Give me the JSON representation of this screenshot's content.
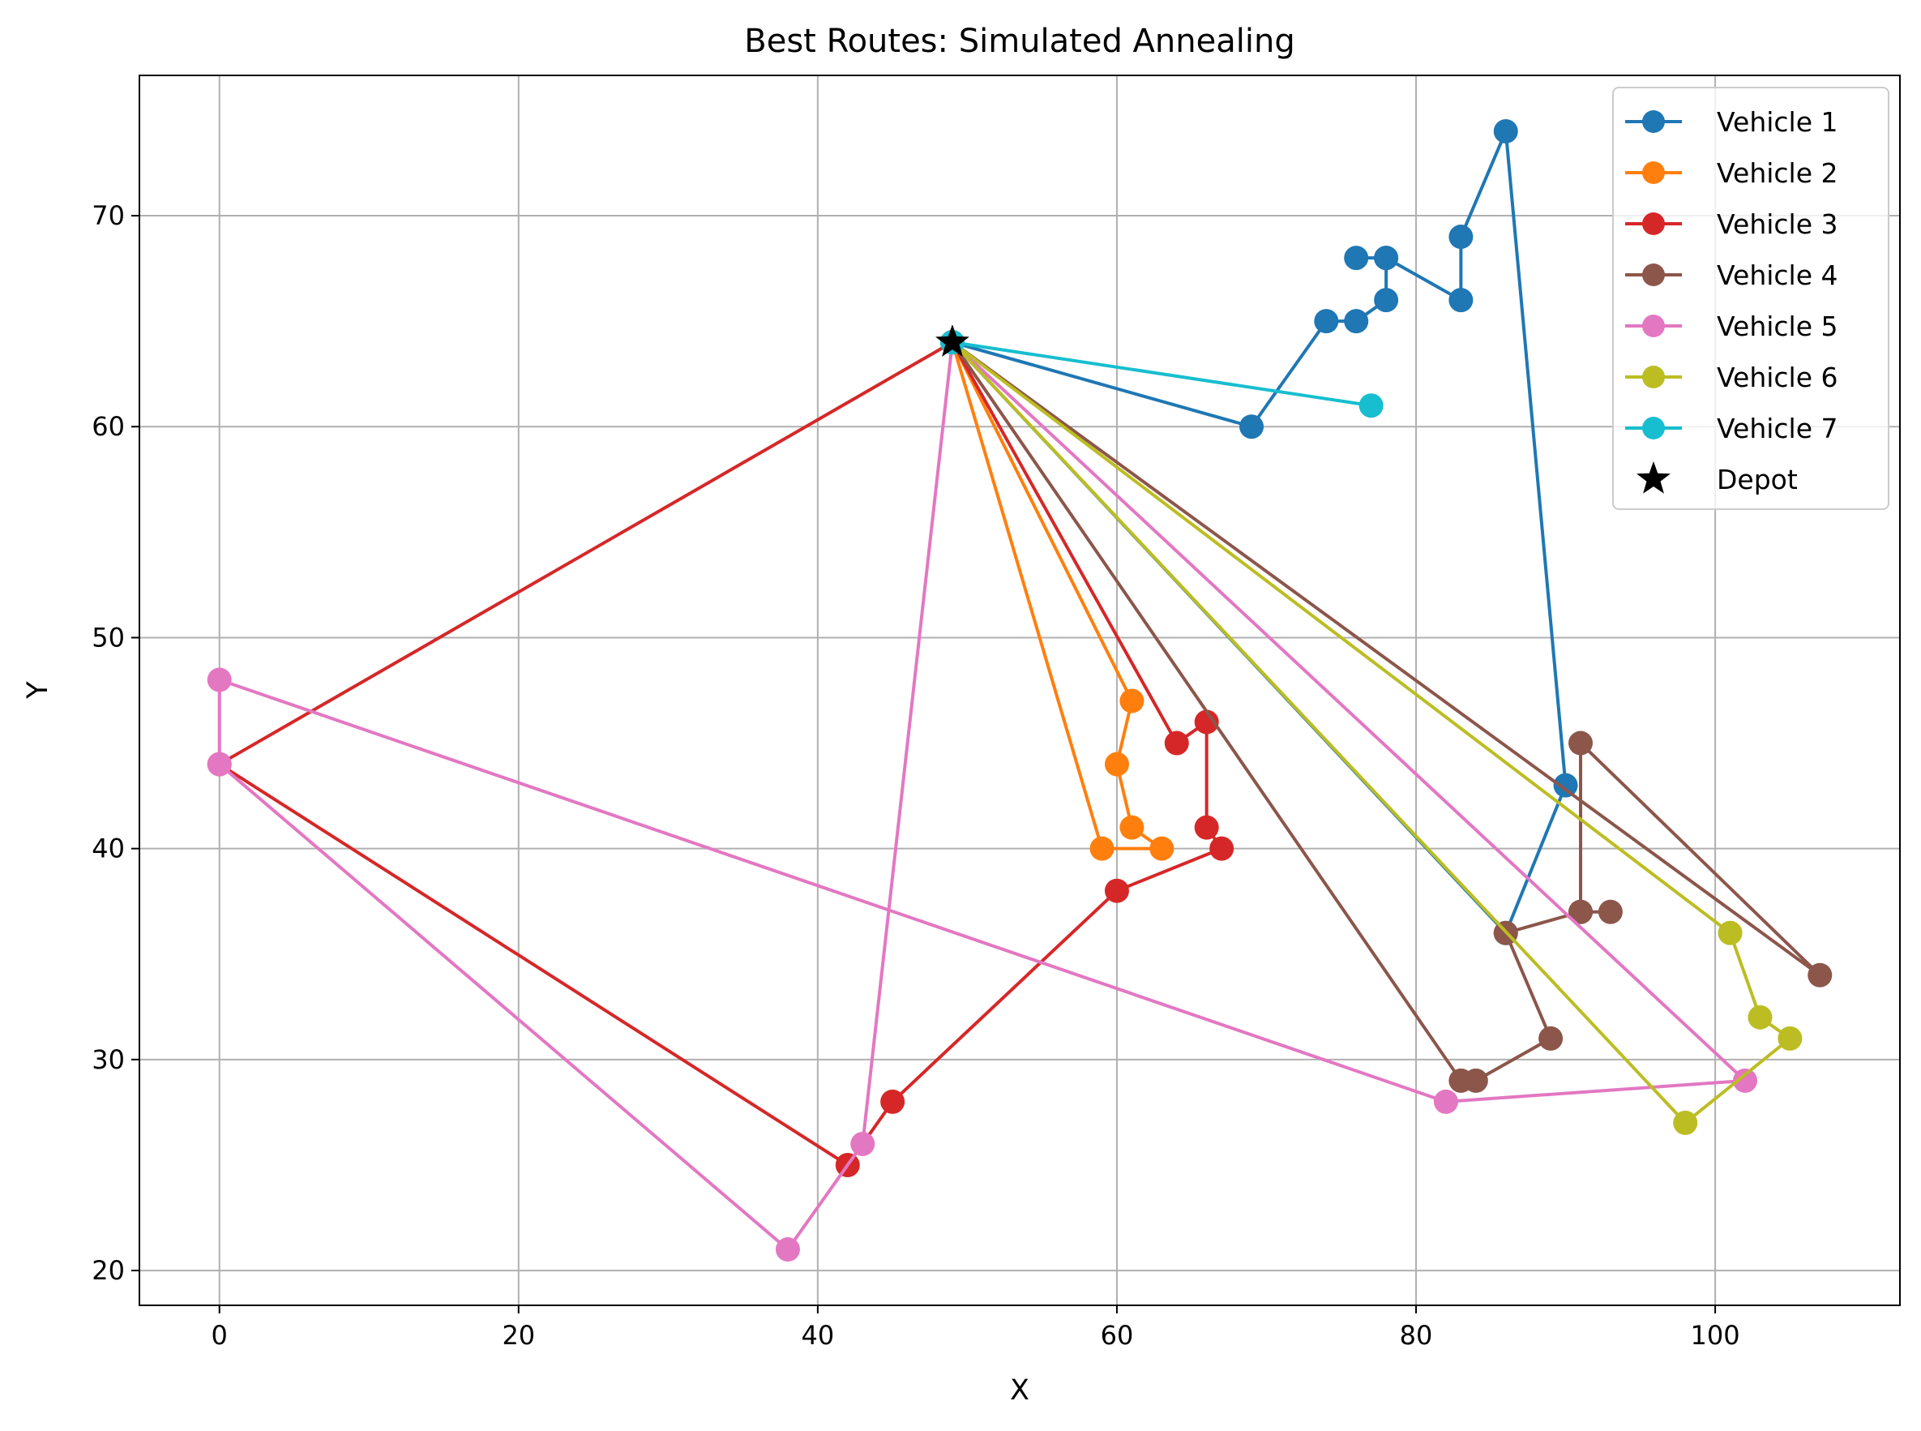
{
  "chart_data": {
    "type": "line",
    "title": "Best Routes: Simulated Annealing",
    "xlabel": "X",
    "ylabel": "Y",
    "xlim": [
      -5.35,
      112.35
    ],
    "ylim": [
      18.35,
      76.65
    ],
    "x_ticks": [
      0,
      20,
      40,
      60,
      80,
      100
    ],
    "y_ticks": [
      20,
      30,
      40,
      50,
      60,
      70
    ],
    "grid": true,
    "legend_position": "top-right",
    "depot": {
      "name": "Depot",
      "x": 49,
      "y": 64,
      "marker": "star",
      "color": "#000000"
    },
    "series": [
      {
        "name": "Vehicle 1",
        "color": "#1f77b4",
        "points": [
          [
            49,
            64
          ],
          [
            69,
            60
          ],
          [
            74,
            65
          ],
          [
            76,
            65
          ],
          [
            78,
            66
          ],
          [
            78,
            68
          ],
          [
            76,
            68
          ],
          [
            78,
            68
          ],
          [
            83,
            66
          ],
          [
            83,
            69
          ],
          [
            86,
            74
          ],
          [
            90,
            43
          ],
          [
            86,
            36
          ],
          [
            49,
            64
          ]
        ]
      },
      {
        "name": "Vehicle 2",
        "color": "#ff7f0e",
        "points": [
          [
            49,
            64
          ],
          [
            61,
            47
          ],
          [
            60,
            44
          ],
          [
            61,
            41
          ],
          [
            63,
            40
          ],
          [
            59,
            40
          ],
          [
            49,
            64
          ]
        ]
      },
      {
        "name": "Vehicle 3",
        "color": "#d62728",
        "points": [
          [
            49,
            64
          ],
          [
            64,
            45
          ],
          [
            66,
            46
          ],
          [
            66,
            41
          ],
          [
            67,
            40
          ],
          [
            60,
            38
          ],
          [
            45,
            28
          ],
          [
            42,
            25
          ],
          [
            0,
            44
          ],
          [
            49,
            64
          ]
        ]
      },
      {
        "name": "Vehicle 4",
        "color": "#8c564b",
        "points": [
          [
            49,
            64
          ],
          [
            83,
            29
          ],
          [
            84,
            29
          ],
          [
            89,
            31
          ],
          [
            86,
            36
          ],
          [
            91,
            37
          ],
          [
            93,
            37
          ],
          [
            91,
            37
          ],
          [
            91,
            45
          ],
          [
            107,
            34
          ],
          [
            49,
            64
          ]
        ]
      },
      {
        "name": "Vehicle 5",
        "color": "#e377c2",
        "points": [
          [
            49,
            64
          ],
          [
            43,
            26
          ],
          [
            38,
            21
          ],
          [
            0,
            44
          ],
          [
            0,
            48
          ],
          [
            82,
            28
          ],
          [
            102,
            29
          ],
          [
            49,
            64
          ]
        ]
      },
      {
        "name": "Vehicle 6",
        "color": "#bcbd22",
        "points": [
          [
            49,
            64
          ],
          [
            98,
            27
          ],
          [
            105,
            31
          ],
          [
            103,
            32
          ],
          [
            101,
            36
          ],
          [
            49,
            64
          ]
        ]
      },
      {
        "name": "Vehicle 7",
        "color": "#17becf",
        "points": [
          [
            49,
            64
          ],
          [
            77,
            61
          ],
          [
            49,
            64
          ]
        ]
      }
    ]
  }
}
